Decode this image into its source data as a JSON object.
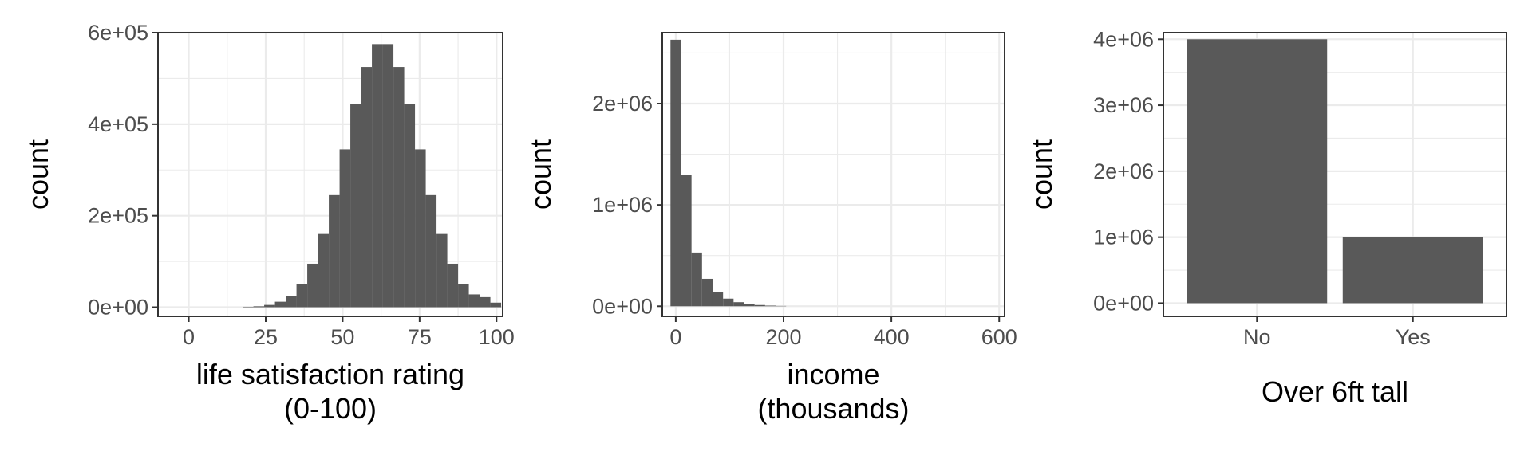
{
  "chart_data": [
    {
      "type": "bar",
      "subtype": "histogram",
      "xlabel": [
        "life satisfaction rating",
        "(0-100)"
      ],
      "ylabel": "count",
      "xlim": [
        -10,
        102
      ],
      "ylim": [
        -20000,
        600000
      ],
      "xticks": [
        0,
        25,
        50,
        75,
        100
      ],
      "xtick_labels": [
        "0",
        "25",
        "50",
        "75",
        "100"
      ],
      "yticks": [
        0,
        200000,
        400000,
        600000
      ],
      "ytick_labels": [
        "0e+00",
        "2e+05",
        "4e+05",
        "6e+05"
      ],
      "bin_width": 3.5,
      "bin_starts": [
        17.5,
        21,
        24.5,
        28,
        31.5,
        35,
        38.5,
        42,
        45.5,
        49,
        52.5,
        56,
        59.5,
        63,
        66.5,
        70,
        73.5,
        77,
        80.5,
        84,
        87.5,
        91,
        94.5,
        98
      ],
      "values": [
        1000,
        2000,
        5000,
        12000,
        25000,
        50000,
        95000,
        160000,
        245000,
        345000,
        445000,
        525000,
        575000,
        575000,
        525000,
        445000,
        345000,
        245000,
        160000,
        95000,
        50000,
        28000,
        22000,
        10000
      ],
      "grid": true,
      "bar_color": "#595959"
    },
    {
      "type": "bar",
      "subtype": "histogram",
      "xlabel": [
        "income",
        "(thousands)"
      ],
      "ylabel": "count",
      "xlim": [
        -25,
        610
      ],
      "ylim": [
        -100000,
        2700000
      ],
      "xticks": [
        0,
        200,
        400,
        600
      ],
      "xtick_labels": [
        "0",
        "200",
        "400",
        "600"
      ],
      "yticks": [
        0,
        1000000,
        2000000
      ],
      "ytick_labels": [
        "0e+00",
        "1e+06",
        "2e+06"
      ],
      "bin_width": 19.5,
      "bin_starts": [
        -9.75,
        9.75,
        29.25,
        48.75,
        68.25,
        87.75,
        107.25,
        126.75,
        146.25,
        165.75,
        185.25
      ],
      "values": [
        2630000,
        1300000,
        530000,
        270000,
        140000,
        75000,
        40000,
        22000,
        12000,
        6000,
        3000
      ],
      "grid": true,
      "bar_color": "#595959"
    },
    {
      "type": "bar",
      "xlabel": [
        "Over 6ft tall"
      ],
      "ylabel": "count",
      "categories": [
        "No",
        "Yes"
      ],
      "values": [
        4000000,
        1000000
      ],
      "ylim": [
        -200000,
        4100000
      ],
      "yticks": [
        0,
        1000000,
        2000000,
        3000000,
        4000000
      ],
      "ytick_labels": [
        "0e+00",
        "1e+06",
        "2e+06",
        "3e+06",
        "4e+06"
      ],
      "grid": true,
      "bar_color": "#595959"
    }
  ]
}
